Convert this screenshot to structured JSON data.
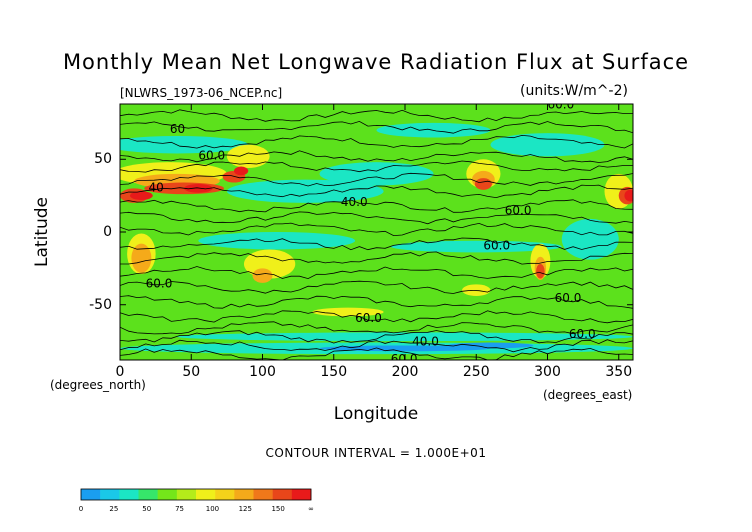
{
  "chart_data": {
    "type": "heatmap",
    "title": "Monthly Mean Net Longwave Radiation Flux at Surface",
    "file_label": "[NLWRS_1973-06_NCEP.nc]",
    "units_label": "(units:W/m^-2)",
    "xlabel": "Longitude",
    "ylabel": "Latitude",
    "x_units_label": "(degrees_north)",
    "y_units_label": "(degrees_east)",
    "xlim": [
      0,
      360
    ],
    "ylim": [
      -88,
      88
    ],
    "x_ticks": [
      "0",
      "50",
      "100",
      "150",
      "200",
      "250",
      "300",
      "350"
    ],
    "x_tick_values": [
      0,
      50,
      100,
      150,
      200,
      250,
      300,
      350
    ],
    "y_ticks": [
      "50",
      "0",
      "-50"
    ],
    "y_tick_values": [
      50,
      0,
      -50
    ],
    "contour_interval": "CONTOUR INTERVAL = 1.000E+01",
    "contour_labels": [
      {
        "text": "60.0",
        "x": 300,
        "y": 85
      },
      {
        "text": "60",
        "x": 35,
        "y": 68
      },
      {
        "text": "60.0",
        "x": 55,
        "y": 50
      },
      {
        "text": "40",
        "x": 20,
        "y": 28
      },
      {
        "text": "40.0",
        "x": 155,
        "y": 18
      },
      {
        "text": "60.0",
        "x": 270,
        "y": 12
      },
      {
        "text": "60.0",
        "x": 255,
        "y": -12
      },
      {
        "text": "60.0",
        "x": 18,
        "y": -38
      },
      {
        "text": "60.0",
        "x": 165,
        "y": -62
      },
      {
        "text": "40.0",
        "x": 205,
        "y": -78
      },
      {
        "text": "60.0",
        "x": 315,
        "y": -73
      },
      {
        "text": "60.0",
        "x": 305,
        "y": -48
      },
      {
        "text": "60.0",
        "x": 190,
        "y": -90
      }
    ],
    "colorbar": {
      "levels": [
        "0",
        "25",
        "50",
        "75",
        "100",
        "125",
        "150",
        "∞"
      ],
      "colors": [
        "#1a9ef0",
        "#1ac8e8",
        "#1be6c4",
        "#36e66a",
        "#74e61a",
        "#b4ec1a",
        "#f0f01a",
        "#f5d21a",
        "#f5aa1a",
        "#f0781a",
        "#e8461a",
        "#e81a1a"
      ]
    },
    "field_colors": {
      "cold": "#1a9ef0",
      "cool": "#1be6c4",
      "base": "#5ce11c",
      "warm": "#f0f01a",
      "warmer": "#f5aa1a",
      "hot": "#e8461a",
      "hottest": "#e81a1a"
    }
  }
}
